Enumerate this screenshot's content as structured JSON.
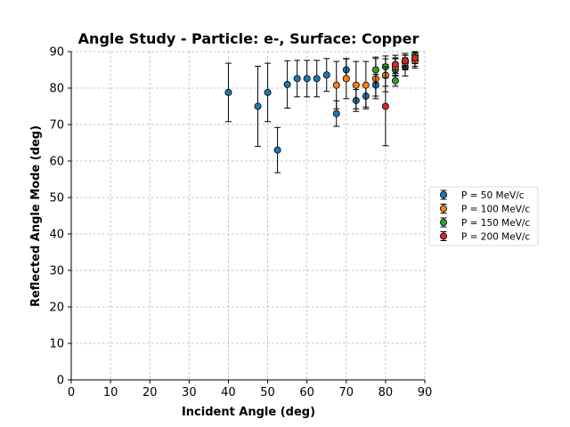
{
  "chart_data": {
    "type": "scatter",
    "title": "Angle Study - Particle: e-, Surface: Copper",
    "xlabel": "Incident Angle (deg)",
    "ylabel": "Reflected Angle Mode (deg)",
    "xlim": [
      0,
      90
    ],
    "ylim": [
      0,
      90
    ],
    "xticks": [
      "0",
      "10",
      "20",
      "30",
      "40",
      "50",
      "60",
      "70",
      "80",
      "90"
    ],
    "yticks": [
      "0",
      "10",
      "20",
      "30",
      "40",
      "50",
      "60",
      "70",
      "80",
      "90"
    ],
    "grid": true,
    "legend_position": "right",
    "series": [
      {
        "name": "P = 50 MeV/c",
        "color": "#1f77b4",
        "x": [
          40.0,
          47.5,
          50.0,
          52.5,
          55.0,
          57.5,
          60.0,
          62.5,
          65.0,
          67.5,
          70.0,
          72.5,
          75.0,
          77.5,
          80.0,
          82.5,
          85.0,
          87.5
        ],
        "y": [
          78.8,
          75.0,
          78.8,
          63.0,
          81.0,
          82.6,
          82.6,
          82.6,
          83.6,
          73.0,
          85.0,
          76.6,
          77.8,
          80.8,
          83.5,
          85.0,
          85.8,
          87.5
        ],
        "err": [
          8.0,
          11.0,
          8.0,
          6.2,
          6.5,
          5.0,
          5.0,
          5.0,
          4.5,
          3.5,
          3.0,
          3.0,
          3.0,
          3.0,
          3.0,
          3.0,
          2.5,
          2.0
        ]
      },
      {
        "name": "P = 100 MeV/c",
        "color": "#ff7f0e",
        "x": [
          67.5,
          70.0,
          72.5,
          75.0,
          77.5,
          80.0,
          82.5,
          85.0,
          87.5
        ],
        "y": [
          80.8,
          82.6,
          80.8,
          80.8,
          82.6,
          83.5,
          85.8,
          87.0,
          87.5
        ],
        "err": [
          6.5,
          5.5,
          6.5,
          6.5,
          5.5,
          4.5,
          2.5,
          2.0,
          1.5
        ]
      },
      {
        "name": "P = 150 MeV/c",
        "color": "#2ca02c",
        "x": [
          77.5,
          80.0,
          82.5,
          85.0,
          87.5
        ],
        "y": [
          85.0,
          85.8,
          82.0,
          87.5,
          89.0
        ],
        "err": [
          3.5,
          3.0,
          1.5,
          1.5,
          1.0
        ]
      },
      {
        "name": "P = 200 MeV/c",
        "color": "#d62728",
        "x": [
          80.0,
          82.5,
          85.0,
          87.5
        ],
        "y": [
          75.0,
          86.5,
          87.5,
          88.2
        ],
        "err": [
          10.8,
          2.5,
          2.0,
          1.5
        ]
      }
    ]
  }
}
